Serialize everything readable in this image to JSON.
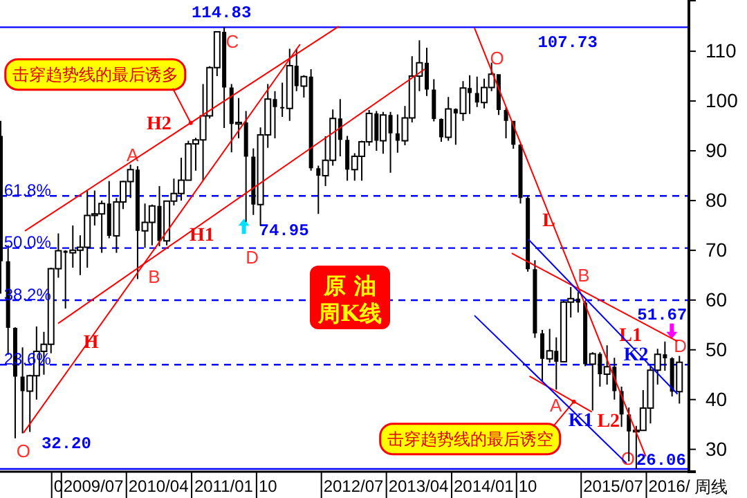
{
  "chart_data": {
    "type": "candlestick",
    "title": "原 油",
    "subtitle": "周K线",
    "xlim": [
      "2008-10-12",
      "2016-09-24"
    ],
    "ylim": [
      25.5,
      120.3
    ],
    "xticks": [
      {
        "value": "2009-06-15",
        "label": "0"
      },
      {
        "value": "2009-11-10",
        "label": "2009/07"
      },
      {
        "value": "2010-08-11",
        "label": "2010/04"
      },
      {
        "value": "2011-05-13",
        "label": "2011/01"
      },
      {
        "value": "2011-11-15",
        "label": "10"
      },
      {
        "value": "2012-11-10",
        "label": "2012/07"
      },
      {
        "value": "2013-08-11",
        "label": "2013/04"
      },
      {
        "value": "2014-05-13",
        "label": "2014/01"
      },
      {
        "value": "2014-11-15",
        "label": "10"
      },
      {
        "value": "2015-11-10",
        "label": "2015/07"
      },
      {
        "value": "2016-07-03",
        "label": "2016/"
      }
    ],
    "yticks": [
      30,
      40,
      50,
      60,
      70,
      80,
      90,
      100,
      110
    ],
    "ref_lines": [
      {
        "axis": "y",
        "value": 114.83,
        "color": "#0000ff",
        "line_style": "solid"
      },
      {
        "axis": "y",
        "value": 80.92,
        "color": "#0000ff",
        "line_style": "dashed"
      },
      {
        "axis": "y",
        "value": 70.45,
        "color": "#0000ff",
        "line_style": "dashed"
      },
      {
        "axis": "y",
        "value": 59.97,
        "color": "#0000ff",
        "line_style": "dashed"
      },
      {
        "axis": "y",
        "value": 47.01,
        "color": "#0000ff",
        "line_style": "dashed"
      },
      {
        "axis": "y",
        "value": 26.06,
        "color": "#0000ff",
        "line_style": "solid"
      }
    ],
    "series": [
      {
        "type": "candlestick",
        "color": "#000000",
        "x": [
          "2008-10-15",
          "2008-11-15",
          "2008-12-15",
          "2009-01-15",
          "2009-02-15",
          "2009-03-15",
          "2009-04-15",
          "2009-05-15",
          "2009-06-15",
          "2009-07-15",
          "2009-08-15",
          "2009-09-15",
          "2009-10-15",
          "2009-11-15",
          "2009-12-15",
          "2010-01-15",
          "2010-02-15",
          "2010-03-15",
          "2010-04-15",
          "2010-05-15",
          "2010-06-15",
          "2010-07-15",
          "2010-08-15",
          "2010-09-15",
          "2010-10-15",
          "2010-11-15",
          "2010-12-15",
          "2011-01-15",
          "2011-02-15",
          "2011-03-15",
          "2011-04-15",
          "2011-05-15",
          "2011-06-15",
          "2011-07-15",
          "2011-08-15",
          "2011-09-15",
          "2011-10-15",
          "2011-11-15",
          "2011-12-15",
          "2012-01-15",
          "2012-02-15",
          "2012-03-15",
          "2012-04-15",
          "2012-05-15",
          "2012-06-15",
          "2012-07-15",
          "2012-08-15",
          "2012-09-15",
          "2012-10-15",
          "2012-11-15",
          "2012-12-15",
          "2013-01-15",
          "2013-02-15",
          "2013-03-15",
          "2013-04-15",
          "2013-05-15",
          "2013-06-15",
          "2013-07-15",
          "2013-08-15",
          "2013-09-15",
          "2013-10-15",
          "2013-11-15",
          "2013-12-15",
          "2014-01-15",
          "2014-02-15",
          "2014-03-15",
          "2014-04-15",
          "2014-05-15",
          "2014-06-15",
          "2014-07-15",
          "2014-08-15",
          "2014-09-15",
          "2014-10-15",
          "2014-11-15",
          "2014-12-15",
          "2015-01-15",
          "2015-02-15",
          "2015-03-15",
          "2015-04-15",
          "2015-05-15",
          "2015-06-15",
          "2015-07-15",
          "2015-08-15",
          "2015-09-15",
          "2015-10-15",
          "2015-11-15",
          "2015-12-15",
          "2016-01-15",
          "2016-02-15",
          "2016-03-15",
          "2016-04-15",
          "2016-05-15",
          "2016-06-15",
          "2016-07-15",
          "2016-08-15"
        ],
        "ohlc": [
          [
            93,
            96,
            61.3,
            67.8
          ],
          [
            67.8,
            71,
            49,
            54.4
          ],
          [
            54.4,
            54.5,
            32.2,
            44.6
          ],
          [
            44.6,
            50.5,
            33.2,
            41.7
          ],
          [
            41.7,
            45,
            33.5,
            44.8
          ],
          [
            44.8,
            54.7,
            40,
            49.7
          ],
          [
            49.7,
            53.6,
            45,
            51.1
          ],
          [
            51.1,
            66.5,
            49.3,
            66.3
          ],
          [
            66.3,
            73.4,
            64.5,
            69.9
          ],
          [
            69.9,
            70,
            58.3,
            69.5
          ],
          [
            69.5,
            75,
            66.5,
            70
          ],
          [
            70,
            73,
            65,
            70.6
          ],
          [
            70.6,
            82,
            66.5,
            77
          ],
          [
            77,
            82,
            75,
            77.3
          ],
          [
            77.3,
            80,
            69.5,
            79.4
          ],
          [
            79.4,
            83.9,
            72.4,
            72.9
          ],
          [
            72.9,
            80.5,
            69.5,
            79.7
          ],
          [
            79.7,
            84,
            78.3,
            83.8
          ],
          [
            83.8,
            87.2,
            80.5,
            86.2
          ],
          [
            86.2,
            86.9,
            64.2,
            73.9
          ],
          [
            73.9,
            79.4,
            70.5,
            75.6
          ],
          [
            75.6,
            79.2,
            71,
            78.9
          ],
          [
            78.9,
            82.9,
            70.8,
            71.9
          ],
          [
            71.9,
            80,
            71,
            79.9
          ],
          [
            79.9,
            84.4,
            79,
            81.4
          ],
          [
            81.4,
            88.6,
            80,
            84.1
          ],
          [
            84.1,
            92,
            84,
            91.4
          ],
          [
            91.4,
            92.6,
            86,
            92.2
          ],
          [
            92.2,
            103.4,
            84,
            97
          ],
          [
            97,
            107,
            96.5,
            106.7
          ],
          [
            106.7,
            113.9,
            105,
            113.9
          ],
          [
            113.9,
            114.83,
            94.6,
            102.7
          ],
          [
            102.7,
            103.4,
            89.7,
            95.4
          ],
          [
            95.4,
            100.6,
            92.5,
            95.7
          ],
          [
            95.7,
            98,
            75.7,
            88.8
          ],
          [
            88.8,
            90.5,
            77.1,
            79.2
          ],
          [
            79.2,
            94.7,
            74.95,
            93.2
          ],
          [
            93.2,
            103.4,
            90.6,
            100.4
          ],
          [
            100.4,
            102,
            92.5,
            98.8
          ],
          [
            98.8,
            103.7,
            96.8,
            98.5
          ],
          [
            98.5,
            110.5,
            96,
            107.1
          ],
          [
            107.1,
            110.5,
            102,
            103
          ],
          [
            103,
            105.2,
            100.7,
            104.9
          ],
          [
            104.9,
            106.4,
            86,
            86.5
          ],
          [
            86.5,
            87,
            77.3,
            85
          ],
          [
            85,
            92.9,
            82.9,
            88.1
          ],
          [
            88.1,
            98.3,
            87,
            96.5
          ],
          [
            96.5,
            100.4,
            88.9,
            92.2
          ],
          [
            92.2,
            93,
            84,
            86.2
          ],
          [
            86.2,
            89.5,
            84,
            88.9
          ],
          [
            88.9,
            92,
            84,
            91.8
          ],
          [
            91.8,
            98.2,
            91,
            97.5
          ],
          [
            97.5,
            98,
            90,
            92
          ],
          [
            92,
            97.8,
            89.4,
            97.2
          ],
          [
            97.2,
            97.8,
            85.6,
            93.5
          ],
          [
            93.5,
            97.3,
            89.6,
            92
          ],
          [
            92,
            99,
            91.1,
            96.6
          ],
          [
            96.6,
            109,
            95.7,
            105
          ],
          [
            105,
            112.2,
            102,
            107.7
          ],
          [
            107.7,
            110.7,
            101,
            102.3
          ],
          [
            102.3,
            104.4,
            95.9,
            96.4
          ],
          [
            96.4,
            96.5,
            91.8,
            92.7
          ],
          [
            92.7,
            100.8,
            92,
            98.4
          ],
          [
            98.4,
            98.5,
            91.2,
            97.5
          ],
          [
            97.5,
            104,
            96,
            102.6
          ],
          [
            102.6,
            105.2,
            97.4,
            101.6
          ],
          [
            101.6,
            104.9,
            98.8,
            99.7
          ],
          [
            99.7,
            104.5,
            98.5,
            102.7
          ],
          [
            102.7,
            107.73,
            102,
            105.4
          ],
          [
            105.4,
            105.4,
            97.2,
            98.2
          ],
          [
            98.2,
            98.7,
            92.5,
            96
          ],
          [
            96,
            96,
            90.4,
            91.2
          ],
          [
            91.2,
            91.4,
            79.4,
            80.5
          ],
          [
            80.5,
            81,
            65.7,
            66.2
          ],
          [
            66.2,
            68,
            52.4,
            53.3
          ],
          [
            53.3,
            54,
            43.6,
            48.2
          ],
          [
            48.2,
            54.2,
            47.4,
            49.8
          ],
          [
            49.8,
            52.5,
            42,
            47.6
          ],
          [
            47.6,
            59.9,
            47.5,
            59.6
          ],
          [
            59.6,
            62.6,
            56.5,
            60.3
          ],
          [
            60.3,
            61.6,
            57.5,
            59.5
          ],
          [
            59.5,
            59.8,
            46.7,
            47.1
          ],
          [
            47.1,
            49.5,
            37.8,
            49.2
          ],
          [
            49.2,
            49.5,
            42.6,
            45.1
          ],
          [
            45.1,
            50.9,
            43,
            46.6
          ],
          [
            46.6,
            48.4,
            40,
            41.7
          ],
          [
            41.7,
            42.6,
            34.5,
            37
          ],
          [
            37,
            38.4,
            27.6,
            33.6
          ],
          [
            33.6,
            34.7,
            26.06,
            33.8
          ],
          [
            33.8,
            41.9,
            33.7,
            38.3
          ],
          [
            38.3,
            46.8,
            35.2,
            45.9
          ],
          [
            45.9,
            50.2,
            43,
            49.1
          ],
          [
            49.1,
            51.67,
            45.8,
            48.3
          ],
          [
            48.3,
            48.5,
            40.6,
            41.6
          ],
          [
            41.6,
            48.8,
            39.2,
            47.5
          ]
        ]
      },
      {
        "type": "line",
        "color": "#ff0000",
        "x": [
          "2009-01-19",
          "2012-03-30"
        ],
        "values": [
          33.3,
          111.4
        ]
      },
      {
        "type": "line",
        "color": "#ff0000",
        "x": [
          "2009-06-14",
          "2013-09-06"
        ],
        "values": [
          55.3,
          106.4
        ]
      },
      {
        "type": "line",
        "color": "#ff0000",
        "x": [
          "2009-01-25",
          "2012-09-09"
        ],
        "values": [
          73.9,
          115
        ]
      },
      {
        "type": "line",
        "color": "#ff0000",
        "x": [
          "2014-04-04",
          "2016-03-26"
        ],
        "values": [
          114.7,
          28.6
        ]
      },
      {
        "type": "line",
        "color": "#ff0000",
        "x": [
          "2014-09-08",
          "2016-08-07"
        ],
        "values": [
          69.4,
          51.7
        ]
      },
      {
        "type": "line",
        "color": "#ff0000",
        "x": [
          "2014-11-22",
          "2015-08-12"
        ],
        "values": [
          44.7,
          37.5
        ]
      },
      {
        "type": "line",
        "color": "#0000ff",
        "x": [
          "2014-04-04",
          "2016-01-05"
        ],
        "values": [
          56.9,
          27.2
        ]
      },
      {
        "type": "line",
        "color": "#0000ff",
        "x": [
          "2014-11-17",
          "2016-08-07"
        ],
        "values": [
          72.2,
          41.1
        ]
      }
    ],
    "annotations": [
      {
        "text": "114.83",
        "x": "2011-05-15",
        "y": 114.83
      },
      {
        "text": "32.20",
        "x": "2008-12-15",
        "y": 32.2
      },
      {
        "text": "74.95",
        "x": "2011-10-15",
        "y": 74.95
      },
      {
        "text": "107.73",
        "x": "2014-06-15",
        "y": 107.73
      },
      {
        "text": "51.67",
        "x": "2016-06-15",
        "y": 51.67
      },
      {
        "text": "26.06",
        "x": "2016-02-15",
        "y": 26.06
      },
      {
        "text": "C",
        "x": "2011-06-18",
        "y": 111.9
      },
      {
        "text": "O",
        "x": "2008-12-15",
        "y": 32.2
      },
      {
        "text": "A",
        "x": "2010-04-24",
        "y": 89.2
      },
      {
        "text": "B",
        "x": "2010-05-15",
        "y": 64.2
      },
      {
        "text": "D",
        "x": "2011-10-15",
        "y": 74.95
      },
      {
        "text": "O",
        "x": "2014-06-15",
        "y": 107.73
      },
      {
        "text": "B",
        "x": "2015-06-15",
        "y": 63.3
      },
      {
        "text": "D",
        "x": "2016-08-19",
        "y": 50.8
      },
      {
        "text": "A",
        "x": "2015-03-13",
        "y": 38.9
      },
      {
        "text": "O",
        "x": "2016-01-11",
        "y": 28.1
      },
      {
        "text": "H",
        "x": "2009-10-31",
        "y": 51.4
      },
      {
        "text": "H1",
        "x": "2011-02-10",
        "y": 75.3
      },
      {
        "text": "H2",
        "x": "2010-08-13",
        "y": 91.45
      },
      {
        "text": "L",
        "x": "2015-02-12",
        "y": 75.8
      },
      {
        "text": "L1",
        "x": "2016-01-22",
        "y": 52.8
      },
      {
        "text": "L2",
        "x": "2015-08-12",
        "y": 37.5
      },
      {
        "text": "K1",
        "x": "2015-06-26",
        "y": 35.6
      },
      {
        "text": "K2",
        "x": "2016-02-14",
        "y": 48.9
      },
      {
        "text": "61.8%",
        "x": "2009-02-05",
        "y": 82.1
      },
      {
        "text": "50.0%",
        "x": "2009-02-05",
        "y": 71.6
      },
      {
        "text": "38.2%",
        "x": "2009-02-05",
        "y": 61.1
      },
      {
        "text": "23.6%",
        "x": "2009-02-05",
        "y": 48.2
      },
      {
        "text": "击穿趋势线的最后诱多",
        "x": "2010-12-25",
        "y": 95.6
      },
      {
        "text": "击穿趋势线的最后诱空",
        "x": "2015-05-28",
        "y": 39.58
      },
      "周线"
    ]
  }
}
